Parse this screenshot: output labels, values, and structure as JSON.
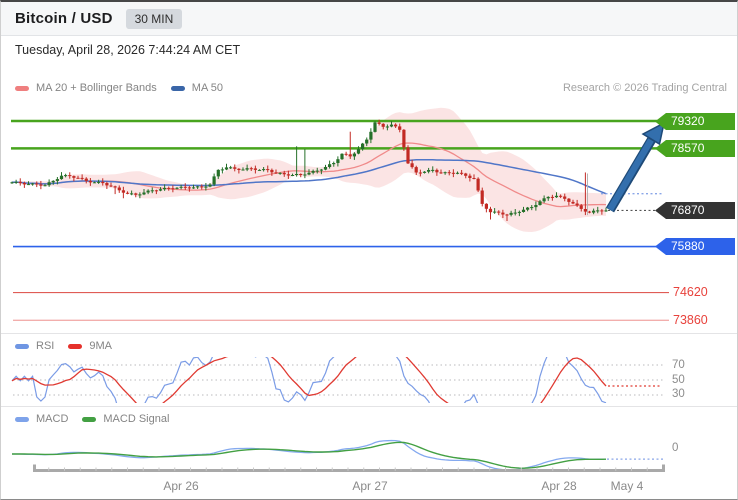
{
  "header": {
    "title": "Bitcoin / USD",
    "timeframe": "30 MIN"
  },
  "datetime": "Tuesday, April 28, 2026 7:44:24 AM CET",
  "attribution": "Research © 2026 Trading Central",
  "legend_main": {
    "ma20": "MA 20 + Bollinger Bands",
    "ma50": "MA 50"
  },
  "legend_rsi": {
    "rsi": "RSI",
    "ma9": "9MA"
  },
  "legend_macd": {
    "macd": "MACD",
    "signal": "MACD Signal"
  },
  "price_labels": {
    "r2": "79320",
    "r1": "78570",
    "last": "76870",
    "pivot": "75880",
    "s1": "74620",
    "s2": "73860"
  },
  "rsi_ticks": {
    "t70": "70",
    "t50": "50",
    "t30": "30"
  },
  "macd_ticks": {
    "zero": "0"
  },
  "x_labels": {
    "d1": "Apr 26",
    "d2": "Apr 27",
    "d3": "Apr 28",
    "d4": "May 4"
  },
  "colors": {
    "accent_green": "#48a41e",
    "accent_blue": "#2d62ea",
    "label_dark": "#333333",
    "level_red": "#e05c56",
    "level_red_light": "#f2aeac",
    "candle_up": "#26702a",
    "candle_down": "#c22a24",
    "band_fill": "#fbe4e4",
    "ma20": "#f08a8a",
    "ma50": "#5076c8",
    "rsi": "#7b9ce6",
    "rsi_ma": "#e03a32",
    "macd": "#84a9ef",
    "macd_signal": "#43a043",
    "arrow": "#336fad",
    "arrow_dark": "#1e4a78",
    "dotted_blue": "#8aa6e8",
    "grid_dotted": "#b9b9bd"
  },
  "chart_data": {
    "type": "candlestick",
    "symbol": "Bitcoin / USD",
    "interval": "30 MIN",
    "title": "Bitcoin / USD 30 MIN intraday candlestick chart with bullish projection arrow toward 79320",
    "x_labels": [
      "Apr 26",
      "Apr 27",
      "Apr 28",
      "May 4"
    ],
    "closes": [
      77640,
      77620,
      77590,
      77580,
      77560,
      77680,
      77820,
      77810,
      77760,
      77680,
      77640,
      77620,
      77530,
      77420,
      77330,
      77300,
      77360,
      77420,
      77450,
      77480,
      77490,
      77500,
      77500,
      77510,
      77580,
      77980,
      78050,
      78010,
      77990,
      78020,
      77980,
      77980,
      77890,
      77860,
      77840,
      77850,
      77900,
      77960,
      78060,
      78170,
      78420,
      78350,
      78550,
      78810,
      79280,
      79160,
      79220,
      79080,
      78160,
      77910,
      77930,
      77980,
      77890,
      77900,
      77900,
      77820,
      77740,
      77050,
      76820,
      76810,
      76750,
      76810,
      76890,
      76960,
      77120,
      77240,
      77270,
      77190,
      77060,
      76910,
      76810,
      76870,
      76870
    ],
    "levels": {
      "resistance": [
        79320,
        78570
      ],
      "last_price": 76870,
      "support_blue": 75880,
      "supports_red": [
        74620,
        73860
      ]
    },
    "indicators": [
      "MA 20 + Bollinger Bands",
      "MA 50",
      "RSI with 9MA",
      "MACD with MACD Signal"
    ],
    "rsi_levels": [
      70,
      50,
      30
    ],
    "macd_zero": 0,
    "projection": {
      "direction": "up",
      "target": 79320
    }
  }
}
